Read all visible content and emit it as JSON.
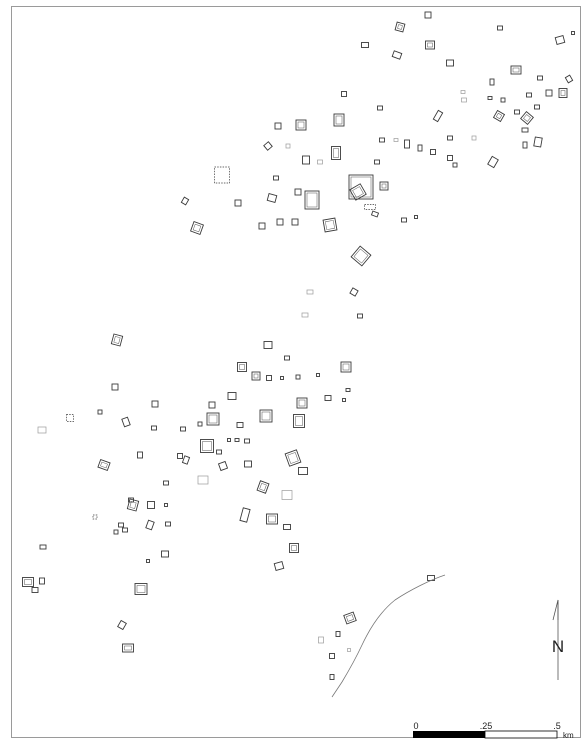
{
  "map": {
    "north_label": "N",
    "scale": {
      "ticks": [
        "0",
        ".25",
        ".5"
      ],
      "unit": "km"
    },
    "colors": {
      "structure": "#3a3a3a",
      "structure_faint": "#9a9a9a",
      "river": "#777777",
      "scale_bar": "#000000"
    }
  }
}
